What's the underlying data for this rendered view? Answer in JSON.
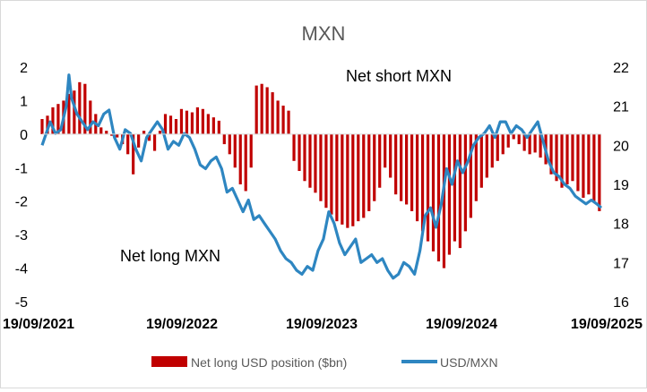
{
  "chart_data": {
    "type": "bar+line",
    "title": "MXN",
    "annotations": {
      "top": "Net short MXN",
      "bottom": "Net long MXN"
    },
    "left_axis": {
      "ylim": [
        -5,
        2
      ],
      "ticks": [
        "2",
        "1",
        "0",
        "-1",
        "-2",
        "-3",
        "-4",
        "-5"
      ]
    },
    "right_axis": {
      "ylim": [
        16,
        22
      ],
      "ticks": [
        "22",
        "21",
        "20",
        "19",
        "18",
        "17",
        "16"
      ]
    },
    "x_axis": {
      "range": [
        "2021-09-19",
        "2025-09-19"
      ],
      "ticks": [
        "19/09/2021",
        "19/09/2022",
        "19/09/2023",
        "19/09/2024",
        "19/09/2025"
      ]
    },
    "grid": false,
    "legend_position": "bottom",
    "colors": {
      "bars": "#c00000",
      "line": "#2e86c1"
    },
    "series": [
      {
        "name": "Net long USD position ($bn)",
        "type": "bar",
        "axis": "left",
        "points": [
          [
            "2021-09-19",
            0.45
          ],
          [
            "2021-10-03",
            0.55
          ],
          [
            "2021-10-17",
            0.8
          ],
          [
            "2021-10-31",
            0.9
          ],
          [
            "2021-11-14",
            1.0
          ],
          [
            "2021-11-28",
            1.2
          ],
          [
            "2021-12-12",
            1.3
          ],
          [
            "2021-12-26",
            1.55
          ],
          [
            "2022-01-09",
            1.5
          ],
          [
            "2022-01-23",
            1.0
          ],
          [
            "2022-02-06",
            0.6
          ],
          [
            "2022-02-20",
            0.2
          ],
          [
            "2022-03-06",
            0.1
          ],
          [
            "2022-03-20",
            -0.05
          ],
          [
            "2022-04-03",
            -0.1
          ],
          [
            "2022-04-17",
            -0.3
          ],
          [
            "2022-05-01",
            -0.6
          ],
          [
            "2022-05-15",
            -1.2
          ],
          [
            "2022-05-29",
            -0.4
          ],
          [
            "2022-06-12",
            0.1
          ],
          [
            "2022-06-26",
            -0.2
          ],
          [
            "2022-07-10",
            -0.5
          ],
          [
            "2022-07-24",
            0.1
          ],
          [
            "2022-08-07",
            0.6
          ],
          [
            "2022-08-21",
            0.55
          ],
          [
            "2022-09-04",
            0.45
          ],
          [
            "2022-09-18",
            0.75
          ],
          [
            "2022-10-02",
            0.7
          ],
          [
            "2022-10-16",
            0.65
          ],
          [
            "2022-10-30",
            0.8
          ],
          [
            "2022-11-13",
            0.75
          ],
          [
            "2022-11-27",
            0.6
          ],
          [
            "2022-12-11",
            0.5
          ],
          [
            "2022-12-25",
            0.4
          ],
          [
            "2023-01-08",
            -0.3
          ],
          [
            "2023-01-22",
            -0.6
          ],
          [
            "2023-02-05",
            -1.0
          ],
          [
            "2023-02-19",
            -1.5
          ],
          [
            "2023-03-05",
            -1.7
          ],
          [
            "2023-03-19",
            -1.0
          ],
          [
            "2023-04-02",
            1.45
          ],
          [
            "2023-04-16",
            1.5
          ],
          [
            "2023-04-30",
            1.4
          ],
          [
            "2023-05-14",
            1.25
          ],
          [
            "2023-05-28",
            1.0
          ],
          [
            "2023-06-11",
            0.85
          ],
          [
            "2023-06-25",
            0.7
          ],
          [
            "2023-07-09",
            -0.8
          ],
          [
            "2023-07-23",
            -1.1
          ],
          [
            "2023-08-06",
            -1.4
          ],
          [
            "2023-08-20",
            -1.6
          ],
          [
            "2023-09-03",
            -1.75
          ],
          [
            "2023-09-17",
            -2.0
          ],
          [
            "2023-10-01",
            -2.2
          ],
          [
            "2023-10-15",
            -2.4
          ],
          [
            "2023-10-29",
            -2.6
          ],
          [
            "2023-11-12",
            -2.7
          ],
          [
            "2023-11-26",
            -2.8
          ],
          [
            "2023-12-10",
            -2.75
          ],
          [
            "2023-12-24",
            -2.6
          ],
          [
            "2024-01-07",
            -2.5
          ],
          [
            "2024-01-21",
            -2.3
          ],
          [
            "2024-02-04",
            -2.0
          ],
          [
            "2024-02-18",
            -1.6
          ],
          [
            "2024-03-03",
            -1.0
          ],
          [
            "2024-03-17",
            -1.3
          ],
          [
            "2024-03-31",
            -1.8
          ],
          [
            "2024-04-14",
            -2.0
          ],
          [
            "2024-04-28",
            -2.1
          ],
          [
            "2024-05-12",
            -2.3
          ],
          [
            "2024-05-26",
            -2.6
          ],
          [
            "2024-06-09",
            -2.9
          ],
          [
            "2024-06-23",
            -3.2
          ],
          [
            "2024-07-07",
            -3.5
          ],
          [
            "2024-07-21",
            -3.8
          ],
          [
            "2024-08-04",
            -4.0
          ],
          [
            "2024-08-18",
            -3.6
          ],
          [
            "2024-09-01",
            -3.2
          ],
          [
            "2024-09-15",
            -3.4
          ],
          [
            "2024-09-29",
            -2.9
          ],
          [
            "2024-10-13",
            -2.5
          ],
          [
            "2024-10-27",
            -2.0
          ],
          [
            "2024-11-10",
            -1.6
          ],
          [
            "2024-11-24",
            -1.3
          ],
          [
            "2024-12-08",
            -1.0
          ],
          [
            "2024-12-22",
            -0.8
          ],
          [
            "2025-01-05",
            -0.6
          ],
          [
            "2025-01-19",
            -0.4
          ],
          [
            "2025-02-02",
            -0.15
          ],
          [
            "2025-02-16",
            -0.3
          ],
          [
            "2025-03-02",
            -0.5
          ],
          [
            "2025-03-16",
            -0.6
          ],
          [
            "2025-03-30",
            -0.55
          ],
          [
            "2025-04-13",
            -0.7
          ],
          [
            "2025-04-27",
            -0.9
          ],
          [
            "2025-05-11",
            -1.2
          ],
          [
            "2025-05-25",
            -1.4
          ],
          [
            "2025-06-08",
            -1.6
          ],
          [
            "2025-06-22",
            -1.5
          ],
          [
            "2025-07-06",
            -1.4
          ],
          [
            "2025-07-20",
            -1.7
          ],
          [
            "2025-08-03",
            -1.9
          ],
          [
            "2025-08-17",
            -1.8
          ],
          [
            "2025-08-31",
            -2.0
          ],
          [
            "2025-09-14",
            -2.3
          ]
        ]
      },
      {
        "name": "USD/MXN",
        "type": "line",
        "axis": "right",
        "points": [
          [
            "2021-09-19",
            20.0
          ],
          [
            "2021-10-10",
            20.6
          ],
          [
            "2021-10-24",
            20.3
          ],
          [
            "2021-11-07",
            20.4
          ],
          [
            "2021-11-21",
            21.0
          ],
          [
            "2021-11-28",
            21.8
          ],
          [
            "2021-12-05",
            21.2
          ],
          [
            "2021-12-19",
            20.8
          ],
          [
            "2022-01-02",
            20.6
          ],
          [
            "2022-01-16",
            20.4
          ],
          [
            "2022-01-30",
            20.6
          ],
          [
            "2022-02-13",
            20.5
          ],
          [
            "2022-02-27",
            20.8
          ],
          [
            "2022-03-13",
            20.9
          ],
          [
            "2022-03-27",
            20.2
          ],
          [
            "2022-04-10",
            19.9
          ],
          [
            "2022-04-24",
            20.4
          ],
          [
            "2022-05-08",
            20.3
          ],
          [
            "2022-05-22",
            19.9
          ],
          [
            "2022-06-05",
            19.6
          ],
          [
            "2022-06-19",
            20.2
          ],
          [
            "2022-07-03",
            20.4
          ],
          [
            "2022-07-17",
            20.6
          ],
          [
            "2022-07-31",
            20.4
          ],
          [
            "2022-08-14",
            19.9
          ],
          [
            "2022-08-28",
            20.1
          ],
          [
            "2022-09-11",
            20.0
          ],
          [
            "2022-09-25",
            20.3
          ],
          [
            "2022-10-09",
            20.2
          ],
          [
            "2022-10-23",
            19.9
          ],
          [
            "2022-11-06",
            19.5
          ],
          [
            "2022-11-20",
            19.4
          ],
          [
            "2022-12-04",
            19.6
          ],
          [
            "2022-12-18",
            19.7
          ],
          [
            "2023-01-01",
            19.4
          ],
          [
            "2023-01-15",
            18.8
          ],
          [
            "2023-01-29",
            18.9
          ],
          [
            "2023-02-12",
            18.6
          ],
          [
            "2023-02-26",
            18.3
          ],
          [
            "2023-03-12",
            18.6
          ],
          [
            "2023-03-26",
            18.1
          ],
          [
            "2023-04-09",
            18.2
          ],
          [
            "2023-04-23",
            18.0
          ],
          [
            "2023-05-07",
            17.8
          ],
          [
            "2023-05-21",
            17.6
          ],
          [
            "2023-06-04",
            17.3
          ],
          [
            "2023-06-18",
            17.1
          ],
          [
            "2023-07-02",
            17.0
          ],
          [
            "2023-07-16",
            16.8
          ],
          [
            "2023-07-30",
            16.7
          ],
          [
            "2023-08-13",
            16.9
          ],
          [
            "2023-08-27",
            16.8
          ],
          [
            "2023-09-10",
            17.3
          ],
          [
            "2023-09-24",
            17.6
          ],
          [
            "2023-10-08",
            18.3
          ],
          [
            "2023-10-22",
            18.0
          ],
          [
            "2023-11-05",
            17.5
          ],
          [
            "2023-11-19",
            17.2
          ],
          [
            "2023-12-03",
            17.4
          ],
          [
            "2023-12-17",
            17.6
          ],
          [
            "2023-12-31",
            17.0
          ],
          [
            "2024-01-14",
            17.1
          ],
          [
            "2024-01-28",
            17.2
          ],
          [
            "2024-02-11",
            17.0
          ],
          [
            "2024-02-25",
            17.1
          ],
          [
            "2024-03-10",
            16.8
          ],
          [
            "2024-03-24",
            16.6
          ],
          [
            "2024-04-07",
            16.7
          ],
          [
            "2024-04-21",
            17.0
          ],
          [
            "2024-05-05",
            16.9
          ],
          [
            "2024-05-19",
            16.7
          ],
          [
            "2024-06-02",
            17.3
          ],
          [
            "2024-06-16",
            18.2
          ],
          [
            "2024-06-30",
            18.4
          ],
          [
            "2024-07-14",
            17.9
          ],
          [
            "2024-07-28",
            18.5
          ],
          [
            "2024-08-11",
            19.4
          ],
          [
            "2024-08-25",
            19.0
          ],
          [
            "2024-09-08",
            19.6
          ],
          [
            "2024-09-22",
            19.3
          ],
          [
            "2024-10-06",
            19.6
          ],
          [
            "2024-10-20",
            20.0
          ],
          [
            "2024-11-03",
            20.2
          ],
          [
            "2024-11-17",
            20.3
          ],
          [
            "2024-12-01",
            20.5
          ],
          [
            "2024-12-15",
            20.2
          ],
          [
            "2024-12-29",
            20.6
          ],
          [
            "2025-01-12",
            20.6
          ],
          [
            "2025-01-26",
            20.3
          ],
          [
            "2025-02-09",
            20.5
          ],
          [
            "2025-02-23",
            20.4
          ],
          [
            "2025-03-09",
            20.2
          ],
          [
            "2025-03-23",
            20.4
          ],
          [
            "2025-04-06",
            20.6
          ],
          [
            "2025-04-20",
            20.1
          ],
          [
            "2025-05-04",
            19.6
          ],
          [
            "2025-05-18",
            19.3
          ],
          [
            "2025-06-01",
            19.2
          ],
          [
            "2025-06-15",
            19.0
          ],
          [
            "2025-06-29",
            18.9
          ],
          [
            "2025-07-13",
            18.7
          ],
          [
            "2025-07-27",
            18.6
          ],
          [
            "2025-08-10",
            18.5
          ],
          [
            "2025-08-24",
            18.6
          ],
          [
            "2025-09-07",
            18.5
          ],
          [
            "2025-09-19",
            18.4
          ]
        ]
      }
    ]
  }
}
